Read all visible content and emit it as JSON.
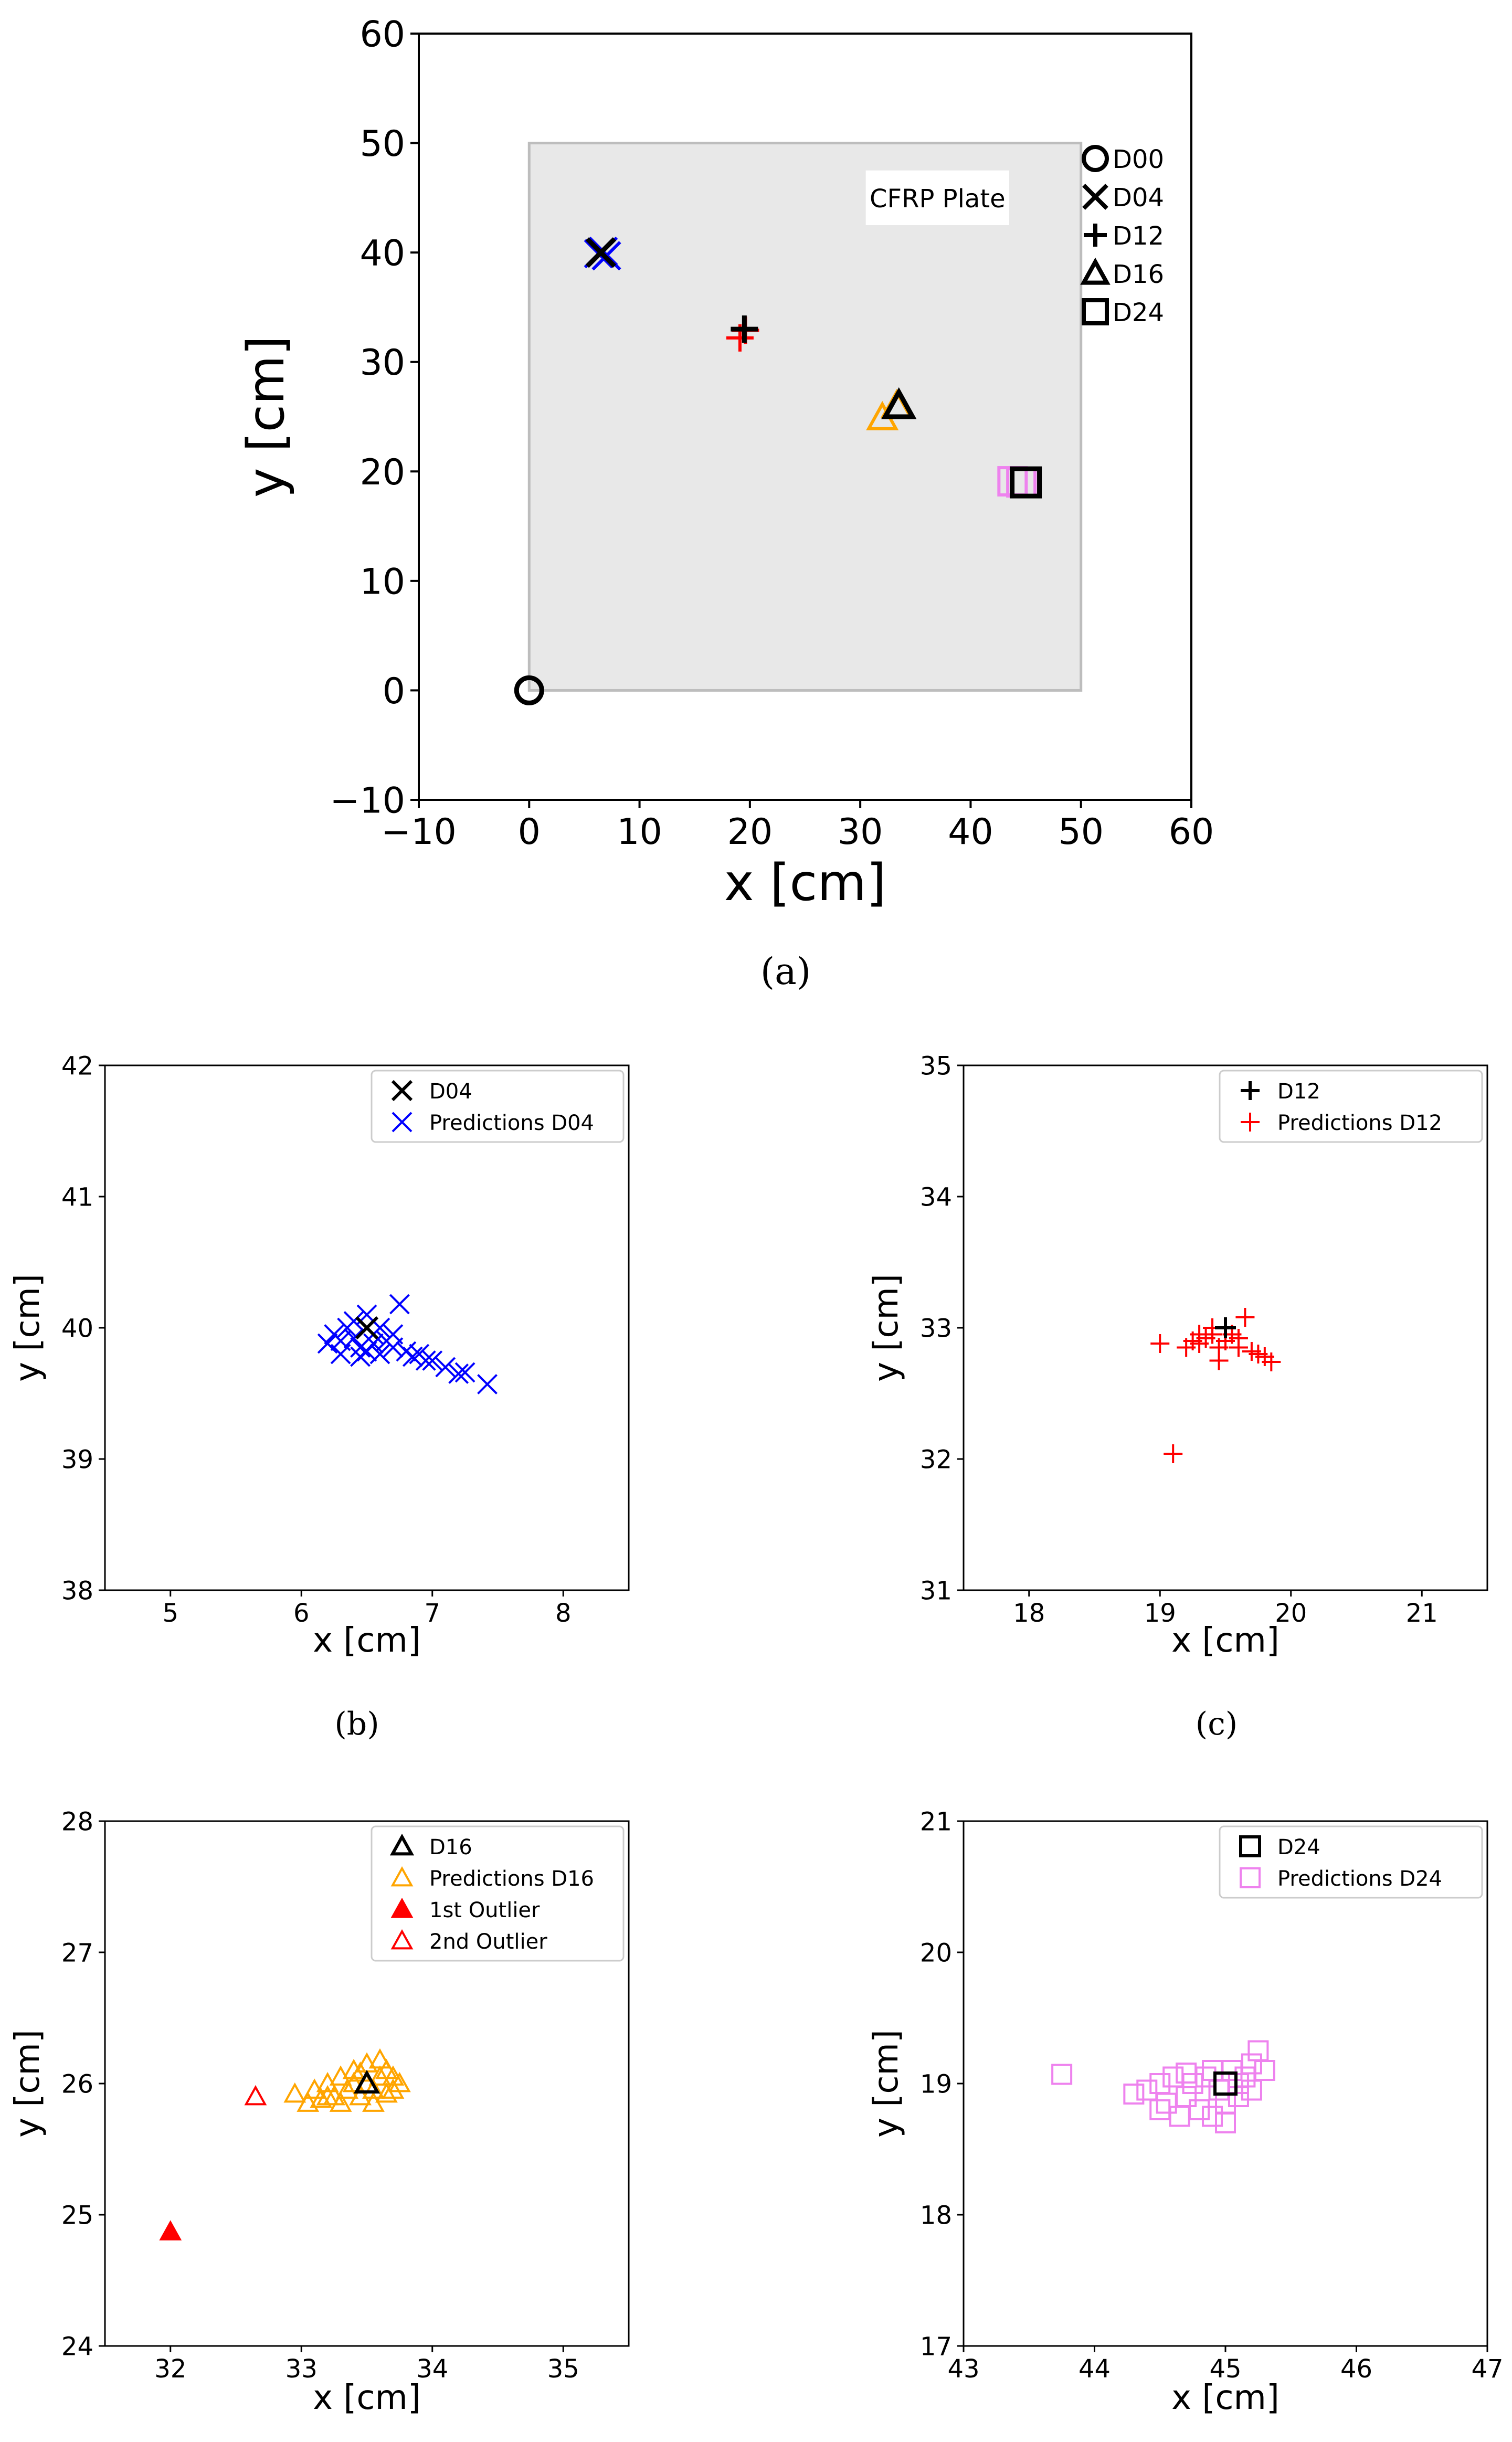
{
  "chart_data": [
    {
      "id": "a",
      "type": "scatter",
      "caption": "(a)",
      "title": "",
      "xlabel": "x [cm]",
      "ylabel": "y [cm]",
      "xlim": [
        -10,
        60
      ],
      "ylim": [
        -10,
        60
      ],
      "xticks": [
        -10,
        0,
        10,
        20,
        30,
        40,
        50,
        60
      ],
      "yticks": [
        -10,
        0,
        10,
        20,
        30,
        40,
        50,
        60
      ],
      "annotation": "CFRP Plate",
      "plate": {
        "x": [
          0,
          50
        ],
        "y": [
          0,
          50
        ],
        "color": "#e8e8e8"
      },
      "legend_position": "outside-right",
      "legend": [
        {
          "label": "D00",
          "marker": "circle"
        },
        {
          "label": "D04",
          "marker": "x"
        },
        {
          "label": "D12",
          "marker": "plus"
        },
        {
          "label": "D16",
          "marker": "triangle"
        },
        {
          "label": "D24",
          "marker": "square"
        }
      ],
      "damage_points": [
        {
          "name": "D00",
          "x": 0,
          "y": 0,
          "marker": "circle"
        },
        {
          "name": "D04",
          "x": 6.5,
          "y": 40,
          "marker": "x"
        },
        {
          "name": "D12",
          "x": 19.5,
          "y": 33,
          "marker": "plus"
        },
        {
          "name": "D16",
          "x": 33.5,
          "y": 26,
          "marker": "triangle"
        },
        {
          "name": "D24",
          "x": 45,
          "y": 19,
          "marker": "square"
        }
      ],
      "prediction_points": [
        {
          "x": 6.3,
          "y": 39.9,
          "marker": "x",
          "color": "#0000ff"
        },
        {
          "x": 6.7,
          "y": 40.1,
          "marker": "x",
          "color": "#0000ff"
        },
        {
          "x": 7.0,
          "y": 39.7,
          "marker": "x",
          "color": "#0000ff"
        },
        {
          "x": 19.1,
          "y": 32.2,
          "marker": "plus",
          "color": "#ff0000"
        },
        {
          "x": 19.6,
          "y": 32.9,
          "marker": "plus",
          "color": "#ff0000"
        },
        {
          "x": 32.0,
          "y": 24.9,
          "marker": "triangle",
          "color": "#ffa500"
        },
        {
          "x": 33.3,
          "y": 26.0,
          "marker": "triangle",
          "color": "#ffa500"
        },
        {
          "x": 43.8,
          "y": 19.1,
          "marker": "square",
          "color": "#ee82ee"
        },
        {
          "x": 44.6,
          "y": 19.0,
          "marker": "square",
          "color": "#ee82ee"
        }
      ]
    },
    {
      "id": "b",
      "type": "scatter",
      "caption": "(b)",
      "xlabel": "x [cm]",
      "ylabel": "y [cm]",
      "xlim": [
        4.5,
        8.5
      ],
      "ylim": [
        38,
        42
      ],
      "xticks": [
        5,
        6,
        7,
        8
      ],
      "yticks": [
        38,
        39,
        40,
        41,
        42
      ],
      "legend_position": "top-right",
      "series": [
        {
          "name": "D04",
          "marker": "x",
          "color": "#000000",
          "points": [
            [
              6.5,
              40.0
            ]
          ]
        },
        {
          "name": "Predictions D04",
          "marker": "x",
          "color": "#0000ff",
          "points": [
            [
              6.2,
              39.88
            ],
            [
              6.25,
              39.95
            ],
            [
              6.3,
              39.9
            ],
            [
              6.35,
              40.0
            ],
            [
              6.4,
              40.05
            ],
            [
              6.45,
              39.85
            ],
            [
              6.5,
              40.1
            ],
            [
              6.55,
              39.95
            ],
            [
              6.6,
              40.0
            ],
            [
              6.6,
              39.8
            ],
            [
              6.65,
              39.9
            ],
            [
              6.7,
              39.85
            ],
            [
              6.75,
              40.18
            ],
            [
              6.8,
              39.82
            ],
            [
              6.85,
              39.78
            ],
            [
              6.9,
              39.8
            ],
            [
              6.95,
              39.75
            ],
            [
              7.0,
              39.75
            ],
            [
              7.1,
              39.7
            ],
            [
              7.2,
              39.65
            ],
            [
              7.25,
              39.66
            ],
            [
              7.42,
              39.57
            ],
            [
              6.3,
              39.8
            ],
            [
              6.45,
              39.78
            ],
            [
              6.55,
              39.88
            ],
            [
              6.4,
              39.92
            ],
            [
              6.7,
              39.95
            ],
            [
              6.5,
              39.82
            ]
          ]
        }
      ]
    },
    {
      "id": "c",
      "type": "scatter",
      "caption": "(c)",
      "xlabel": "x [cm]",
      "ylabel": "y [cm]",
      "xlim": [
        17.5,
        21.5
      ],
      "ylim": [
        31,
        35
      ],
      "xticks": [
        18,
        19,
        20,
        21
      ],
      "yticks": [
        31,
        32,
        33,
        34,
        35
      ],
      "legend_position": "top-right",
      "series": [
        {
          "name": "D12",
          "marker": "plus",
          "color": "#000000",
          "points": [
            [
              19.5,
              33.0
            ]
          ]
        },
        {
          "name": "Predictions D12",
          "marker": "plus",
          "color": "#ff0000",
          "points": [
            [
              19.0,
              32.88
            ],
            [
              19.1,
              32.04
            ],
            [
              19.2,
              32.85
            ],
            [
              19.25,
              32.9
            ],
            [
              19.3,
              32.88
            ],
            [
              19.35,
              32.92
            ],
            [
              19.4,
              32.95
            ],
            [
              19.45,
              32.75
            ],
            [
              19.5,
              32.9
            ],
            [
              19.55,
              32.95
            ],
            [
              19.6,
              32.85
            ],
            [
              19.65,
              33.08
            ],
            [
              19.7,
              32.82
            ],
            [
              19.75,
              32.8
            ],
            [
              19.8,
              32.78
            ],
            [
              19.85,
              32.74
            ],
            [
              19.3,
              32.95
            ],
            [
              19.45,
              32.85
            ],
            [
              19.6,
              32.92
            ],
            [
              19.4,
              33.0
            ]
          ]
        }
      ]
    },
    {
      "id": "d",
      "type": "scatter",
      "caption": "",
      "xlabel": "x [cm]",
      "ylabel": "y [cm]",
      "xlim": [
        31.5,
        35.5
      ],
      "ylim": [
        24,
        28
      ],
      "xticks": [
        32,
        33,
        34,
        35
      ],
      "yticks": [
        24,
        25,
        26,
        27,
        28
      ],
      "legend_position": "top-right",
      "series": [
        {
          "name": "D16",
          "marker": "triangle",
          "color": "#000000",
          "fill": "none",
          "points": [
            [
              33.5,
              26.0
            ]
          ]
        },
        {
          "name": "Predictions D16",
          "marker": "triangle",
          "color": "#ffa500",
          "fill": "none",
          "points": [
            [
              32.95,
              25.92
            ],
            [
              33.05,
              25.85
            ],
            [
              33.1,
              25.95
            ],
            [
              33.15,
              25.88
            ],
            [
              33.2,
              26.0
            ],
            [
              33.25,
              25.9
            ],
            [
              33.3,
              26.05
            ],
            [
              33.35,
              25.95
            ],
            [
              33.4,
              26.1
            ],
            [
              33.45,
              25.9
            ],
            [
              33.5,
              26.15
            ],
            [
              33.55,
              25.85
            ],
            [
              33.6,
              26.05
            ],
            [
              33.65,
              26.1
            ],
            [
              33.7,
              25.95
            ],
            [
              33.75,
              26.0
            ],
            [
              33.3,
              25.85
            ],
            [
              33.45,
              26.08
            ],
            [
              33.55,
              25.95
            ],
            [
              33.65,
              25.92
            ],
            [
              33.2,
              25.9
            ],
            [
              33.6,
              26.18
            ],
            [
              33.4,
              26.0
            ],
            [
              33.7,
              26.05
            ]
          ]
        },
        {
          "name": "1st Outlier",
          "marker": "triangle",
          "color": "#ff0000",
          "fill": "#ff0000",
          "points": [
            [
              32.0,
              24.87
            ]
          ]
        },
        {
          "name": "2nd Outlier",
          "marker": "triangle",
          "color": "#ff0000",
          "fill": "none",
          "points": [
            [
              32.65,
              25.9
            ]
          ]
        }
      ]
    },
    {
      "id": "e",
      "type": "scatter",
      "caption": "",
      "xlabel": "x [cm]",
      "ylabel": "y [cm]",
      "xlim": [
        43,
        47
      ],
      "ylim": [
        17,
        21
      ],
      "xticks": [
        43,
        44,
        45,
        46,
        47
      ],
      "yticks": [
        17,
        18,
        19,
        20,
        21
      ],
      "legend_position": "top-right",
      "series": [
        {
          "name": "D24",
          "marker": "square",
          "color": "#000000",
          "points": [
            [
              45.0,
              19.0
            ]
          ]
        },
        {
          "name": "Predictions D24",
          "marker": "square",
          "color": "#ee82ee",
          "points": [
            [
              43.75,
              19.07
            ],
            [
              44.4,
              18.95
            ],
            [
              44.5,
              19.0
            ],
            [
              44.55,
              18.85
            ],
            [
              44.6,
              19.05
            ],
            [
              44.65,
              18.75
            ],
            [
              44.7,
              18.9
            ],
            [
              44.75,
              19.0
            ],
            [
              44.8,
              18.8
            ],
            [
              44.85,
              19.05
            ],
            [
              44.9,
              18.75
            ],
            [
              44.95,
              18.95
            ],
            [
              45.0,
              18.85
            ],
            [
              45.05,
              19.1
            ],
            [
              45.1,
              18.9
            ],
            [
              45.15,
              19.05
            ],
            [
              45.2,
              19.15
            ],
            [
              45.25,
              19.25
            ],
            [
              45.3,
              19.1
            ],
            [
              44.5,
              18.8
            ],
            [
              44.7,
              19.08
            ],
            [
              44.9,
              19.1
            ],
            [
              45.1,
              19.0
            ],
            [
              45.2,
              18.95
            ],
            [
              44.3,
              18.92
            ],
            [
              45.0,
              18.7
            ]
          ]
        }
      ]
    }
  ]
}
